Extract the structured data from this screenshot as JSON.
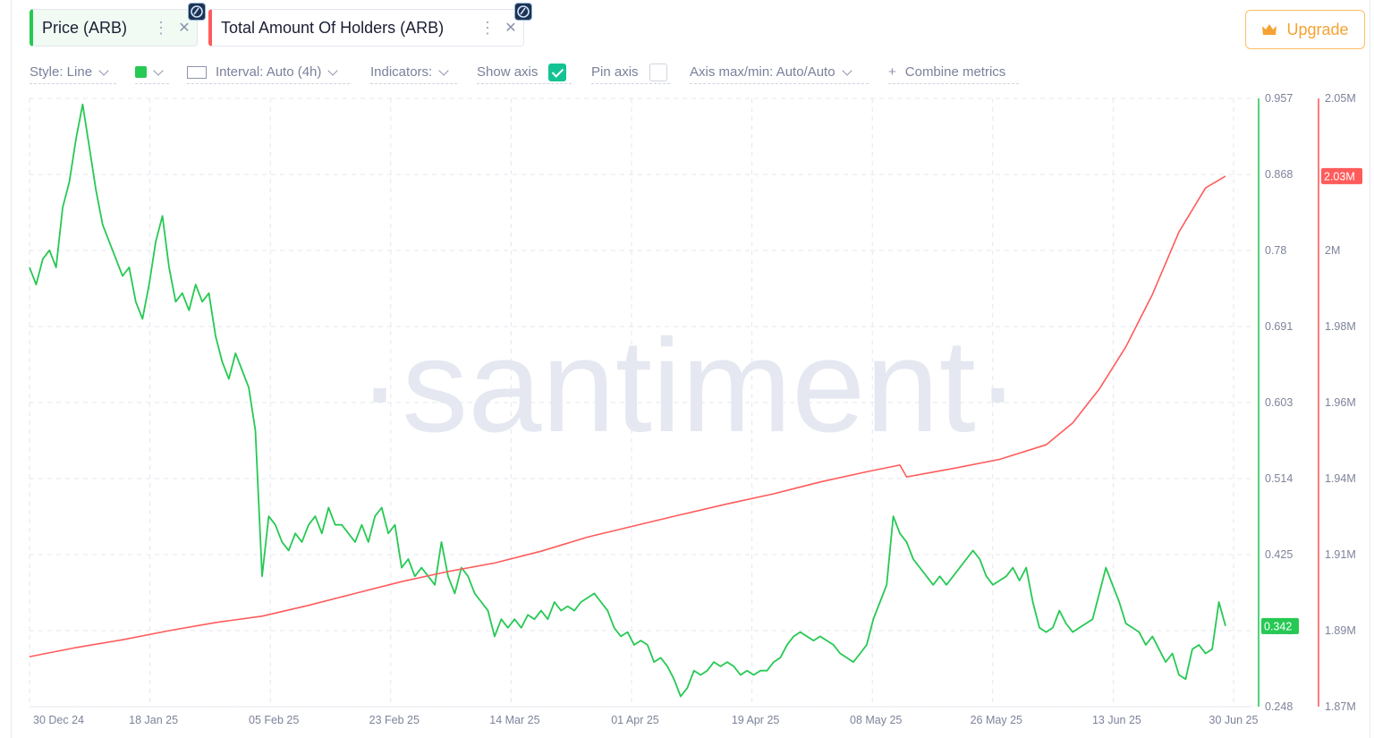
{
  "metrics": [
    {
      "label": "Price (ARB)"
    },
    {
      "label": "Total Amount Of Holders (ARB)"
    }
  ],
  "chip_icons": {
    "more": "⋮",
    "close": "✕"
  },
  "upgrade": {
    "label": "Upgrade",
    "icon": "crown-icon"
  },
  "toolbar": {
    "style": "Style: Line",
    "interval": "Interval: Auto (4h)",
    "indicators": "Indicators:",
    "show_axis": "Show axis",
    "show_axis_checked": true,
    "pin_axis": "Pin axis",
    "pin_axis_checked": false,
    "axis_maxmin": "Axis max/min: Auto/Auto",
    "combine": "Combine metrics",
    "plus": "+"
  },
  "watermark": "·santiment·",
  "colors": {
    "price": "#26c953",
    "holders": "#ff5b5b",
    "grid": "#e4e7ef",
    "axis_text": "#7d839a"
  },
  "chart_data": {
    "type": "line",
    "x_labels": [
      "30 Dec 24",
      "18 Jan 25",
      "05 Feb 25",
      "23 Feb 25",
      "14 Mar 25",
      "01 Apr 25",
      "19 Apr 25",
      "08 May 25",
      "26 May 25",
      "13 Jun 25",
      "30 Jun 25"
    ],
    "x_range": [
      "2024-12-30",
      "2025-06-28"
    ],
    "grid": true,
    "series": [
      {
        "name": "Price (ARB)",
        "axis": "left",
        "color": "#26c953",
        "ylim": [
          0.248,
          0.957
        ],
        "y_ticks": [
          "0.957",
          "0.868",
          "0.78",
          "0.691",
          "0.603",
          "0.514",
          "0.425",
          "0.342",
          "0.248"
        ],
        "last_value_label": "0.342",
        "points": [
          [
            "2024-12-30",
            0.76
          ],
          [
            "2024-12-31",
            0.74
          ],
          [
            "2025-01-01",
            0.77
          ],
          [
            "2025-01-02",
            0.78
          ],
          [
            "2025-01-03",
            0.76
          ],
          [
            "2025-01-04",
            0.83
          ],
          [
            "2025-01-05",
            0.86
          ],
          [
            "2025-01-06",
            0.91
          ],
          [
            "2025-01-07",
            0.95
          ],
          [
            "2025-01-08",
            0.9
          ],
          [
            "2025-01-09",
            0.85
          ],
          [
            "2025-01-10",
            0.81
          ],
          [
            "2025-01-11",
            0.79
          ],
          [
            "2025-01-12",
            0.77
          ],
          [
            "2025-01-13",
            0.75
          ],
          [
            "2025-01-14",
            0.76
          ],
          [
            "2025-01-15",
            0.72
          ],
          [
            "2025-01-16",
            0.7
          ],
          [
            "2025-01-17",
            0.74
          ],
          [
            "2025-01-18",
            0.79
          ],
          [
            "2025-01-19",
            0.82
          ],
          [
            "2025-01-20",
            0.76
          ],
          [
            "2025-01-21",
            0.72
          ],
          [
            "2025-01-22",
            0.73
          ],
          [
            "2025-01-23",
            0.71
          ],
          [
            "2025-01-24",
            0.74
          ],
          [
            "2025-01-25",
            0.72
          ],
          [
            "2025-01-26",
            0.73
          ],
          [
            "2025-01-27",
            0.68
          ],
          [
            "2025-01-28",
            0.65
          ],
          [
            "2025-01-29",
            0.63
          ],
          [
            "2025-01-30",
            0.66
          ],
          [
            "2025-01-31",
            0.64
          ],
          [
            "2025-02-01",
            0.62
          ],
          [
            "2025-02-02",
            0.57
          ],
          [
            "2025-02-03",
            0.4
          ],
          [
            "2025-02-04",
            0.47
          ],
          [
            "2025-02-05",
            0.46
          ],
          [
            "2025-02-06",
            0.44
          ],
          [
            "2025-02-07",
            0.43
          ],
          [
            "2025-02-08",
            0.45
          ],
          [
            "2025-02-09",
            0.44
          ],
          [
            "2025-02-10",
            0.46
          ],
          [
            "2025-02-11",
            0.47
          ],
          [
            "2025-02-12",
            0.45
          ],
          [
            "2025-02-13",
            0.48
          ],
          [
            "2025-02-14",
            0.46
          ],
          [
            "2025-02-15",
            0.46
          ],
          [
            "2025-02-16",
            0.45
          ],
          [
            "2025-02-17",
            0.44
          ],
          [
            "2025-02-18",
            0.46
          ],
          [
            "2025-02-19",
            0.44
          ],
          [
            "2025-02-20",
            0.47
          ],
          [
            "2025-02-21",
            0.48
          ],
          [
            "2025-02-22",
            0.45
          ],
          [
            "2025-02-23",
            0.46
          ],
          [
            "2025-02-24",
            0.41
          ],
          [
            "2025-02-25",
            0.42
          ],
          [
            "2025-02-26",
            0.4
          ],
          [
            "2025-02-27",
            0.41
          ],
          [
            "2025-02-28",
            0.4
          ],
          [
            "2025-03-01",
            0.39
          ],
          [
            "2025-03-02",
            0.44
          ],
          [
            "2025-03-03",
            0.4
          ],
          [
            "2025-03-04",
            0.38
          ],
          [
            "2025-03-05",
            0.41
          ],
          [
            "2025-03-06",
            0.4
          ],
          [
            "2025-03-07",
            0.38
          ],
          [
            "2025-03-08",
            0.37
          ],
          [
            "2025-03-09",
            0.36
          ],
          [
            "2025-03-10",
            0.33
          ],
          [
            "2025-03-11",
            0.35
          ],
          [
            "2025-03-12",
            0.34
          ],
          [
            "2025-03-13",
            0.35
          ],
          [
            "2025-03-14",
            0.34
          ],
          [
            "2025-03-15",
            0.355
          ],
          [
            "2025-03-16",
            0.35
          ],
          [
            "2025-03-17",
            0.36
          ],
          [
            "2025-03-18",
            0.35
          ],
          [
            "2025-03-19",
            0.37
          ],
          [
            "2025-03-20",
            0.36
          ],
          [
            "2025-03-21",
            0.365
          ],
          [
            "2025-03-22",
            0.36
          ],
          [
            "2025-03-23",
            0.37
          ],
          [
            "2025-03-24",
            0.375
          ],
          [
            "2025-03-25",
            0.38
          ],
          [
            "2025-03-26",
            0.37
          ],
          [
            "2025-03-27",
            0.36
          ],
          [
            "2025-03-28",
            0.34
          ],
          [
            "2025-03-29",
            0.33
          ],
          [
            "2025-03-30",
            0.335
          ],
          [
            "2025-03-31",
            0.32
          ],
          [
            "2025-04-01",
            0.325
          ],
          [
            "2025-04-02",
            0.32
          ],
          [
            "2025-04-03",
            0.3
          ],
          [
            "2025-04-04",
            0.305
          ],
          [
            "2025-04-05",
            0.295
          ],
          [
            "2025-04-06",
            0.28
          ],
          [
            "2025-04-07",
            0.26
          ],
          [
            "2025-04-08",
            0.27
          ],
          [
            "2025-04-09",
            0.29
          ],
          [
            "2025-04-10",
            0.285
          ],
          [
            "2025-04-11",
            0.29
          ],
          [
            "2025-04-12",
            0.3
          ],
          [
            "2025-04-13",
            0.295
          ],
          [
            "2025-04-14",
            0.3
          ],
          [
            "2025-04-15",
            0.295
          ],
          [
            "2025-04-16",
            0.285
          ],
          [
            "2025-04-17",
            0.29
          ],
          [
            "2025-04-18",
            0.285
          ],
          [
            "2025-04-19",
            0.29
          ],
          [
            "2025-04-20",
            0.29
          ],
          [
            "2025-04-21",
            0.3
          ],
          [
            "2025-04-22",
            0.305
          ],
          [
            "2025-04-23",
            0.32
          ],
          [
            "2025-04-24",
            0.33
          ],
          [
            "2025-04-25",
            0.335
          ],
          [
            "2025-04-26",
            0.33
          ],
          [
            "2025-04-27",
            0.325
          ],
          [
            "2025-04-28",
            0.33
          ],
          [
            "2025-04-29",
            0.325
          ],
          [
            "2025-04-30",
            0.32
          ],
          [
            "2025-05-01",
            0.31
          ],
          [
            "2025-05-02",
            0.305
          ],
          [
            "2025-05-03",
            0.3
          ],
          [
            "2025-05-04",
            0.31
          ],
          [
            "2025-05-05",
            0.32
          ],
          [
            "2025-05-06",
            0.35
          ],
          [
            "2025-05-07",
            0.37
          ],
          [
            "2025-05-08",
            0.39
          ],
          [
            "2025-05-09",
            0.47
          ],
          [
            "2025-05-10",
            0.45
          ],
          [
            "2025-05-11",
            0.44
          ],
          [
            "2025-05-12",
            0.42
          ],
          [
            "2025-05-13",
            0.41
          ],
          [
            "2025-05-14",
            0.4
          ],
          [
            "2025-05-15",
            0.39
          ],
          [
            "2025-05-16",
            0.4
          ],
          [
            "2025-05-17",
            0.39
          ],
          [
            "2025-05-18",
            0.4
          ],
          [
            "2025-05-19",
            0.41
          ],
          [
            "2025-05-20",
            0.42
          ],
          [
            "2025-05-21",
            0.43
          ],
          [
            "2025-05-22",
            0.42
          ],
          [
            "2025-05-23",
            0.4
          ],
          [
            "2025-05-24",
            0.39
          ],
          [
            "2025-05-25",
            0.395
          ],
          [
            "2025-05-26",
            0.4
          ],
          [
            "2025-05-27",
            0.41
          ],
          [
            "2025-05-28",
            0.395
          ],
          [
            "2025-05-29",
            0.41
          ],
          [
            "2025-05-30",
            0.37
          ],
          [
            "2025-05-31",
            0.34
          ],
          [
            "2025-06-01",
            0.335
          ],
          [
            "2025-06-02",
            0.34
          ],
          [
            "2025-06-03",
            0.36
          ],
          [
            "2025-06-04",
            0.345
          ],
          [
            "2025-06-05",
            0.335
          ],
          [
            "2025-06-06",
            0.34
          ],
          [
            "2025-06-07",
            0.345
          ],
          [
            "2025-06-08",
            0.35
          ],
          [
            "2025-06-09",
            0.38
          ],
          [
            "2025-06-10",
            0.41
          ],
          [
            "2025-06-11",
            0.39
          ],
          [
            "2025-06-12",
            0.37
          ],
          [
            "2025-06-13",
            0.345
          ],
          [
            "2025-06-14",
            0.34
          ],
          [
            "2025-06-15",
            0.335
          ],
          [
            "2025-06-16",
            0.32
          ],
          [
            "2025-06-17",
            0.33
          ],
          [
            "2025-06-18",
            0.315
          ],
          [
            "2025-06-19",
            0.3
          ],
          [
            "2025-06-20",
            0.31
          ],
          [
            "2025-06-21",
            0.285
          ],
          [
            "2025-06-22",
            0.28
          ],
          [
            "2025-06-23",
            0.315
          ],
          [
            "2025-06-24",
            0.32
          ],
          [
            "2025-06-25",
            0.31
          ],
          [
            "2025-06-26",
            0.315
          ],
          [
            "2025-06-27",
            0.37
          ],
          [
            "2025-06-28",
            0.342
          ]
        ]
      },
      {
        "name": "Total Amount Of Holders (ARB)",
        "axis": "right",
        "color": "#ff5b5b",
        "ylim": [
          1.87,
          2.05
        ],
        "y_ticks": [
          "2.05M",
          "2.03M",
          "2M",
          "1.98M",
          "1.96M",
          "1.94M",
          "1.91M",
          "1.89M",
          "1.87M"
        ],
        "last_value_label": "2.03M",
        "points": [
          [
            "2024-12-30",
            1.8848
          ],
          [
            "2025-01-06",
            1.8875
          ],
          [
            "2025-01-13",
            1.8898
          ],
          [
            "2025-01-20",
            1.8925
          ],
          [
            "2025-01-27",
            1.8949
          ],
          [
            "2025-02-03",
            1.8968
          ],
          [
            "2025-02-10",
            1.9
          ],
          [
            "2025-02-17",
            1.9035
          ],
          [
            "2025-02-24",
            1.907
          ],
          [
            "2025-03-03",
            1.91
          ],
          [
            "2025-03-10",
            1.9125
          ],
          [
            "2025-03-17",
            1.916
          ],
          [
            "2025-03-24",
            1.9202
          ],
          [
            "2025-03-31",
            1.9235
          ],
          [
            "2025-04-07",
            1.9268
          ],
          [
            "2025-04-14",
            1.93
          ],
          [
            "2025-04-21",
            1.933
          ],
          [
            "2025-04-28",
            1.9365
          ],
          [
            "2025-05-05",
            1.9395
          ],
          [
            "2025-05-10",
            1.9415
          ],
          [
            "2025-05-11",
            1.938
          ],
          [
            "2025-05-18",
            1.9405
          ],
          [
            "2025-05-25",
            1.9432
          ],
          [
            "2025-06-01",
            1.9475
          ],
          [
            "2025-06-05",
            1.954
          ],
          [
            "2025-06-09",
            1.964
          ],
          [
            "2025-06-13",
            1.9765
          ],
          [
            "2025-06-17",
            1.992
          ],
          [
            "2025-06-21",
            2.0105
          ],
          [
            "2025-06-25",
            2.0235
          ],
          [
            "2025-06-28",
            2.027
          ]
        ]
      }
    ]
  }
}
